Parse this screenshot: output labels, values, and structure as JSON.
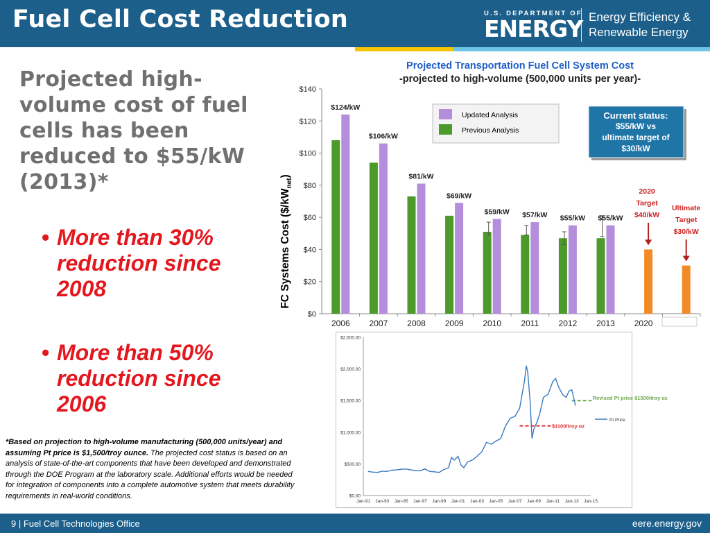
{
  "header": {
    "title": "Fuel Cell Cost Reduction",
    "doe_small": "U.S. DEPARTMENT OF",
    "doe_big": "ENERGY",
    "eere_line1": "Energy Efficiency &",
    "eere_line2": "Renewable Energy"
  },
  "colors": {
    "header_bg": "#1b5f8a",
    "stripe_yellow": "#f5c500",
    "stripe_blue": "#6cc4e6",
    "bullet_red": "#e3181f",
    "previous_green": "#4c9a2a",
    "updated_purple": "#b48edc",
    "target_orange": "#f28a28"
  },
  "main": {
    "heading": "Projected high-volume cost of fuel cells has been reduced to $55/kW (2013)*",
    "bullets": [
      "More than 30% reduction since 2008",
      "More than 50% reduction since 2006"
    ]
  },
  "footnote": {
    "bold": "*Based on projection to high-volume manufacturing (500,000 units/year) and assuming Pt price is $1,500/troy ounce.",
    "rest": " The projected cost status is based on an analysis of state-of-the-art components that have been developed and demonstrated through the DOE Program at the laboratory scale.  Additional efforts would be needed for integration of components into a complete automotive system that meets durability requirements in real-world conditions."
  },
  "footer": {
    "left": "9 | Fuel Cell Technologies Office",
    "right": "eere.energy.gov"
  },
  "chart_data": [
    {
      "type": "bar",
      "title": "Projected Transportation Fuel Cell System Cost",
      "subtitle": "-projected to high-volume (500,000 units per year)-",
      "ylabel_main": "FC Systems Cost ($/kW",
      "ylabel_sub": "net",
      "ylabel_end": ")",
      "ylim": [
        0,
        140
      ],
      "yticks": [
        "$0",
        "$20",
        "$40",
        "$60",
        "$80",
        "$100",
        "$120",
        "$140"
      ],
      "categories": [
        "2006",
        "2007",
        "2008",
        "2009",
        "2010",
        "2011",
        "2012",
        "2013",
        "2020",
        ""
      ],
      "series": [
        {
          "name": "Previous Analysis",
          "values": [
            108,
            94,
            73,
            61,
            51,
            49,
            47,
            47,
            null,
            null
          ]
        },
        {
          "name": "Updated Analysis",
          "values": [
            124,
            106,
            81,
            69,
            59,
            57,
            55,
            55,
            null,
            null
          ]
        },
        {
          "name": "",
          "values": [
            null,
            null,
            null,
            null,
            null,
            null,
            null,
            null,
            40,
            30
          ]
        }
      ],
      "error_bars": [
        null,
        null,
        null,
        null,
        [
          49,
          57
        ],
        [
          49,
          55
        ],
        [
          43,
          51
        ],
        [
          48,
          61
        ],
        null,
        null
      ],
      "bar_labels": [
        "$124/kW",
        "$106/kW",
        "$81/kW",
        "$69/kW",
        "$59/kW",
        "$57/kW",
        "$55/kW",
        "$55/kW"
      ],
      "target_labels": [
        {
          "lines": [
            "2020",
            "Target",
            "$40/kW"
          ]
        },
        {
          "lines": [
            "Ultimate",
            "Target",
            "$30/kW"
          ]
        }
      ],
      "legend": {
        "items": [
          "Updated Analysis",
          "Previous Analysis"
        ],
        "placement": "top-center"
      },
      "status_box": [
        "Current status:",
        "$55/kW vs",
        "ultimate target of",
        "$30/kW"
      ],
      "grid": false
    },
    {
      "type": "line",
      "series": [
        {
          "name": "Pt Price"
        }
      ],
      "yticks": [
        "$0.00",
        "$500.00",
        "$1,000.00",
        "$1,500.00",
        "$2,000.00",
        "$2,500.00"
      ],
      "ylim": [
        0,
        2500
      ],
      "xticks": [
        "Jan-91",
        "Jan-93",
        "Jan-95",
        "Jan-97",
        "Jan-99",
        "Jan-01",
        "Jan-03",
        "Jan-05",
        "Jan-07",
        "Jan-09",
        "Jan-11",
        "Jan-13",
        "Jan-15"
      ],
      "xlim": [
        1991,
        2015
      ],
      "points": [
        [
          1991.5,
          380
        ],
        [
          1992,
          370
        ],
        [
          1992.5,
          365
        ],
        [
          1993,
          385
        ],
        [
          1993.5,
          380
        ],
        [
          1994,
          400
        ],
        [
          1994.5,
          405
        ],
        [
          1995,
          415
        ],
        [
          1995.5,
          420
        ],
        [
          1996,
          405
        ],
        [
          1996.5,
          395
        ],
        [
          1997,
          390
        ],
        [
          1997.5,
          420
        ],
        [
          1998,
          380
        ],
        [
          1998.5,
          375
        ],
        [
          1999,
          365
        ],
        [
          1999.5,
          410
        ],
        [
          2000,
          440
        ],
        [
          2000.3,
          600
        ],
        [
          2000.6,
          560
        ],
        [
          2001,
          620
        ],
        [
          2001.3,
          480
        ],
        [
          2001.6,
          440
        ],
        [
          2002,
          530
        ],
        [
          2002.5,
          560
        ],
        [
          2003,
          620
        ],
        [
          2003.5,
          690
        ],
        [
          2004,
          840
        ],
        [
          2004.5,
          810
        ],
        [
          2005,
          860
        ],
        [
          2005.5,
          900
        ],
        [
          2006,
          1100
        ],
        [
          2006.5,
          1220
        ],
        [
          2007,
          1250
        ],
        [
          2007.5,
          1380
        ],
        [
          2008,
          1800
        ],
        [
          2008.2,
          2050
        ],
        [
          2008.35,
          1950
        ],
        [
          2008.6,
          1500
        ],
        [
          2008.8,
          900
        ],
        [
          2009,
          1050
        ],
        [
          2009.3,
          1150
        ],
        [
          2009.6,
          1280
        ],
        [
          2010,
          1550
        ],
        [
          2010.5,
          1600
        ],
        [
          2011,
          1800
        ],
        [
          2011.3,
          1850
        ],
        [
          2011.6,
          1720
        ],
        [
          2012,
          1600
        ],
        [
          2012.4,
          1550
        ],
        [
          2012.7,
          1650
        ],
        [
          2013,
          1670
        ],
        [
          2013.4,
          1420
        ]
      ],
      "annotations": [
        {
          "text": "Revised Pt price $1500/troy oz",
          "value": 1500,
          "color": "#6ea84a"
        },
        {
          "text": "$1100/troy oz",
          "value": 1100,
          "color": "#e03030"
        }
      ],
      "legend": {
        "items": [
          "Pt Price"
        ],
        "placement": "right"
      },
      "grid": false
    }
  ]
}
